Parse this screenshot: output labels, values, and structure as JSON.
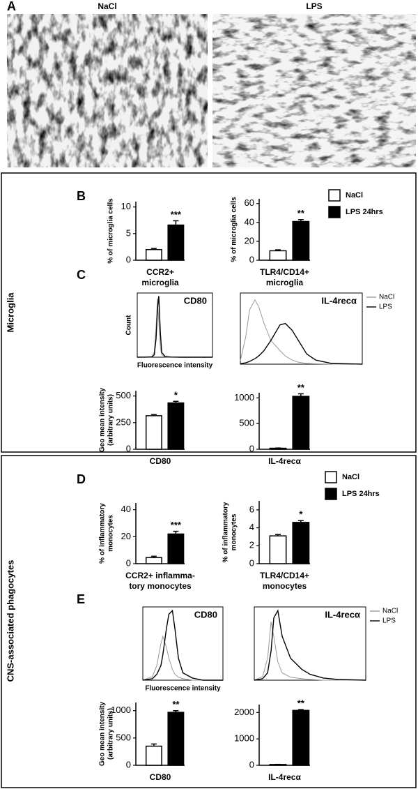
{
  "panel_labels": [
    "A",
    "B",
    "C",
    "D",
    "E"
  ],
  "section_labels": [
    "Microglia",
    "CNS-associated phagocytes"
  ],
  "micrograph_titles": [
    "NaCl",
    "LPS"
  ],
  "legends": [
    {
      "items": [
        {
          "name": "NaCl",
          "color": "#ffffff"
        },
        {
          "name": "LPS 24hrs",
          "color": "#000000"
        }
      ]
    },
    {
      "items": [
        {
          "name": "NaCl",
          "color": "#ffffff"
        },
        {
          "name": "LPS 24hrs",
          "color": "#000000"
        }
      ]
    }
  ],
  "chart_data": [
    {
      "type": "bar",
      "ylabel": [
        "% of microglia cells"
      ],
      "xlabel": [
        "CCR2+",
        "microglia"
      ],
      "values": [
        2,
        6.6
      ],
      "errors": [
        0.2,
        0.8
      ],
      "colors": [
        "#ffffff",
        "#000000"
      ],
      "significance": "***",
      "ylim": [
        0,
        11
      ],
      "yticks": [
        0,
        5,
        10
      ]
    },
    {
      "type": "bar",
      "ylabel": [
        "% of microglia cells"
      ],
      "xlabel": [
        "TLR4/CD14+",
        "microglia"
      ],
      "values": [
        10,
        41
      ],
      "errors": [
        1,
        2
      ],
      "colors": [
        "#ffffff",
        "#000000"
      ],
      "significance": "**",
      "ylim": [
        0,
        65
      ],
      "yticks": [
        0,
        20,
        40,
        60
      ]
    },
    {
      "type": "line",
      "title": "CD80",
      "xlabel": "Fluorescence intensity",
      "ylabel": "Count",
      "log_x": true,
      "x": [
        1,
        3,
        6,
        8,
        10,
        12,
        14,
        17,
        20,
        30,
        60,
        200,
        1000,
        10000
      ],
      "xlim": [
        1,
        10000
      ],
      "ylim": [
        0,
        1050
      ],
      "series": [
        {
          "color": "#999999",
          "values": [
            0,
            2,
            10,
            80,
            500,
            960,
            600,
            150,
            40,
            5,
            2,
            0,
            0,
            0
          ]
        },
        {
          "color": "#000000",
          "values": [
            0,
            1,
            5,
            40,
            300,
            800,
            1000,
            400,
            80,
            10,
            2,
            0,
            0,
            0
          ]
        }
      ]
    },
    {
      "type": "line",
      "title": "IL-4recα",
      "log_x": true,
      "x": [
        1,
        1.5,
        2,
        3,
        4,
        6,
        10,
        20,
        30,
        50,
        80,
        150,
        300,
        1000,
        10000
      ],
      "xlim": [
        1,
        10000
      ],
      "ylim": [
        0,
        1050
      ],
      "series": [
        {
          "name": "NaCl",
          "color": "#999999",
          "values": [
            50,
            400,
            800,
            950,
            850,
            600,
            350,
            200,
            120,
            60,
            30,
            10,
            5,
            0,
            0
          ]
        },
        {
          "name": "LPS",
          "color": "#000000",
          "values": [
            5,
            20,
            40,
            80,
            120,
            200,
            350,
            580,
            600,
            500,
            350,
            150,
            60,
            10,
            0
          ]
        }
      ]
    },
    {
      "type": "bar",
      "ylabel": [
        "Geo mean intensity",
        "(arbitrary units)"
      ],
      "xlabel": [
        "CD80"
      ],
      "values": [
        315,
        435
      ],
      "errors": [
        10,
        15
      ],
      "colors": [
        "#ffffff",
        "#000000"
      ],
      "significance": "*",
      "ylim": [
        0,
        550
      ],
      "yticks": [
        0,
        250,
        500
      ]
    },
    {
      "type": "bar",
      "ylabel": [],
      "xlabel": [
        "IL-4recα"
      ],
      "values": [
        20,
        1030
      ],
      "errors": [
        5,
        50
      ],
      "colors": [
        "#ffffff",
        "#000000"
      ],
      "significance": "**",
      "ylim": [
        0,
        1100
      ],
      "yticks": [
        0,
        500,
        1000
      ]
    },
    {
      "type": "bar",
      "ylabel": [
        "% of inflammatory",
        "monocytes"
      ],
      "xlabel": [
        "CCR2+ inflamma-",
        "tory monocytes"
      ],
      "values": [
        4.5,
        22
      ],
      "errors": [
        1,
        2
      ],
      "colors": [
        "#ffffff",
        "#000000"
      ],
      "significance": "***",
      "ylim": [
        0,
        45
      ],
      "yticks": [
        0,
        20,
        40
      ]
    },
    {
      "type": "bar",
      "ylabel": [
        "% of inflammatory",
        "monocytes"
      ],
      "xlabel": [
        "TLR4/CD14+",
        "monocytes"
      ],
      "values": [
        3.1,
        4.6
      ],
      "errors": [
        0.15,
        0.2
      ],
      "colors": [
        "#ffffff",
        "#000000"
      ],
      "significance": "*",
      "ylim": [
        0,
        7
      ],
      "yticks": [
        0,
        2,
        4,
        6
      ]
    },
    {
      "type": "line",
      "title": "CD80",
      "xlabel": "Fluorescence intensity",
      "log_x": true,
      "x": [
        1,
        3,
        5,
        8,
        10,
        15,
        20,
        30,
        40,
        60,
        100,
        300,
        1000,
        10000
      ],
      "xlim": [
        1,
        10000
      ],
      "ylim": [
        0,
        100
      ],
      "series": [
        {
          "color": "#999999",
          "values": [
            0,
            5,
            20,
            50,
            60,
            45,
            30,
            15,
            8,
            4,
            2,
            0,
            0,
            0
          ]
        },
        {
          "color": "#000000",
          "values": [
            0,
            2,
            8,
            20,
            35,
            70,
            90,
            95,
            70,
            30,
            10,
            3,
            0,
            0
          ]
        }
      ]
    },
    {
      "type": "line",
      "title": "IL-4recα",
      "log_x": true,
      "x": [
        1,
        2,
        3,
        4,
        5,
        7,
        10,
        20,
        50,
        100,
        300,
        1000,
        10000
      ],
      "xlim": [
        1,
        10000
      ],
      "ylim": [
        0,
        100
      ],
      "series": [
        {
          "name": "NaCl",
          "color": "#999999",
          "values": [
            0,
            5,
            30,
            80,
            60,
            25,
            10,
            4,
            2,
            1,
            0,
            0,
            0
          ]
        },
        {
          "name": "LPS",
          "color": "#000000",
          "values": [
            0,
            2,
            10,
            40,
            85,
            95,
            60,
            30,
            15,
            8,
            3,
            1,
            0
          ]
        }
      ]
    },
    {
      "type": "bar",
      "ylabel": [
        "Geo mean intensity",
        "(arbitrary units)"
      ],
      "xlabel": [
        "CD80"
      ],
      "values": [
        350,
        970
      ],
      "errors": [
        40,
        30
      ],
      "colors": [
        "#ffffff",
        "#000000"
      ],
      "significance": "**",
      "ylim": [
        0,
        1150
      ],
      "yticks": [
        0,
        500,
        1000
      ]
    },
    {
      "type": "bar",
      "ylabel": [],
      "xlabel": [
        "IL-4recα"
      ],
      "values": [
        30,
        2080
      ],
      "errors": [
        5,
        30
      ],
      "colors": [
        "#ffffff",
        "#000000"
      ],
      "significance": "**",
      "ylim": [
        0,
        2300
      ],
      "yticks": [
        0,
        1000,
        2000
      ]
    }
  ]
}
